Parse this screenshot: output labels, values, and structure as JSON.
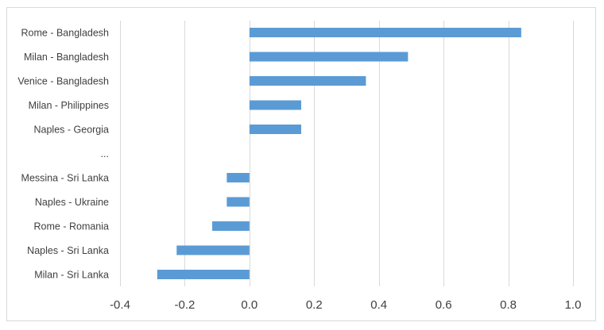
{
  "chart_data": {
    "type": "bar",
    "orientation": "horizontal",
    "title": "",
    "xlabel": "",
    "ylabel": "",
    "categories": [
      "Rome - Bangladesh",
      "Milan - Bangladesh",
      "Venice - Bangladesh",
      "Milan - Philippines",
      "Naples - Georgia",
      "...",
      "Messina - Sri Lanka",
      "Naples - Ukraine",
      "Rome - Romania",
      "Naples - Sri Lanka",
      "Milan - Sri Lanka"
    ],
    "values": [
      0.84,
      0.49,
      0.36,
      0.16,
      0.16,
      null,
      -0.07,
      -0.07,
      -0.115,
      -0.225,
      -0.285
    ],
    "xlim": [
      -0.4,
      1.0
    ],
    "xticks": [
      -0.4,
      -0.2,
      0.0,
      0.2,
      0.4,
      0.6,
      0.8,
      1.0
    ],
    "xtick_labels": [
      "-0.4",
      "-0.2",
      "0.0",
      "0.2",
      "0.4",
      "0.6",
      "0.8",
      "1.0"
    ],
    "grid": "vertical",
    "legend": "none",
    "bar_color": "#5b9bd5",
    "grid_color": "#d9d9d9",
    "text_color": "#404040"
  }
}
